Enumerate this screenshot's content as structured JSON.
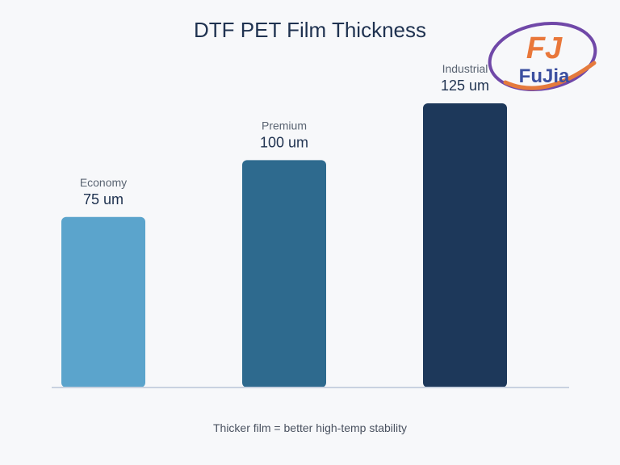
{
  "chart_data": {
    "type": "bar",
    "title": "DTF PET Film Thickness",
    "categories": [
      "Economy",
      "Premium",
      "Industrial"
    ],
    "values": [
      75,
      100,
      125
    ],
    "value_labels": [
      "75 um",
      "100 um",
      "125 um"
    ],
    "colors": [
      "#5ba4cc",
      "#2e6a8e",
      "#1d385a"
    ],
    "caption": "Thicker film = better high-temp stability",
    "ylim": [
      0,
      150
    ],
    "grid": false,
    "legend": "none"
  },
  "logo": {
    "monogram": "FJ",
    "wordmark": "FuJia",
    "colors": {
      "ring": "#7048a8",
      "swoosh": "#e57a3c",
      "letters": "#e9773a",
      "word": "#3b4fa0"
    }
  }
}
